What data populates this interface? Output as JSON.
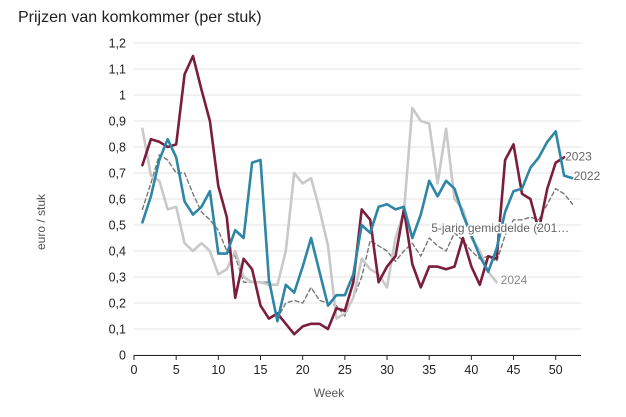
{
  "chart_data": {
    "type": "line",
    "title": "Prijzen van komkommer (per stuk)",
    "xlabel": "Week",
    "ylabel": "euro / stuk",
    "xlim": [
      0,
      53
    ],
    "ylim": [
      0,
      1.2
    ],
    "x_ticks": [
      "0",
      "5",
      "10",
      "15",
      "20",
      "25",
      "30",
      "35",
      "40",
      "45",
      "50"
    ],
    "y_ticks": [
      "0",
      "0,1",
      "0,2",
      "0,3",
      "0,4",
      "0,5",
      "0,6",
      "0,7",
      "0,8",
      "0,9",
      "1",
      "1,1",
      "1,2"
    ],
    "grid": "horizontal",
    "legend": "direct labels at line ends",
    "series": [
      {
        "name": "5-jarig gemiddelde (201…",
        "color": "#777777",
        "dashed": true,
        "x": [
          1,
          2,
          3,
          4,
          5,
          6,
          7,
          8,
          9,
          10,
          11,
          12,
          13,
          14,
          15,
          16,
          17,
          18,
          19,
          20,
          21,
          22,
          23,
          24,
          25,
          26,
          27,
          28,
          29,
          30,
          31,
          32,
          33,
          34,
          35,
          36,
          37,
          38,
          39,
          40,
          41,
          42,
          43,
          44,
          45,
          46,
          47,
          48,
          49,
          50,
          51,
          52
        ],
        "values": [
          0.56,
          0.66,
          0.77,
          0.75,
          0.7,
          0.7,
          0.62,
          0.55,
          0.52,
          0.48,
          0.4,
          0.38,
          0.28,
          0.28,
          0.28,
          0.28,
          0.14,
          0.2,
          0.21,
          0.2,
          0.26,
          0.21,
          0.2,
          0.19,
          0.15,
          0.22,
          0.3,
          0.44,
          0.42,
          0.4,
          0.36,
          0.4,
          0.43,
          0.38,
          0.45,
          0.42,
          0.4,
          0.47,
          0.44,
          0.4,
          0.37,
          0.38,
          0.36,
          0.46,
          0.52,
          0.52,
          0.53,
          0.52,
          0.58,
          0.64,
          0.62,
          0.58
        ]
      },
      {
        "name": "2024",
        "color": "#c9c9c9",
        "dashed": false,
        "x": [
          1,
          2,
          3,
          4,
          5,
          6,
          7,
          8,
          9,
          10,
          11,
          12,
          13,
          14,
          15,
          16,
          17,
          18,
          19,
          20,
          21,
          22,
          23,
          24,
          25,
          26,
          27,
          28,
          29,
          30,
          31,
          32,
          33,
          34,
          35,
          36,
          37,
          38,
          39,
          40,
          41,
          42,
          43
        ],
        "values": [
          0.87,
          0.69,
          0.67,
          0.56,
          0.57,
          0.43,
          0.4,
          0.43,
          0.4,
          0.31,
          0.33,
          0.4,
          0.3,
          0.28,
          0.28,
          0.27,
          0.27,
          0.4,
          0.7,
          0.66,
          0.68,
          0.56,
          0.42,
          0.14,
          0.16,
          0.22,
          0.37,
          0.33,
          0.31,
          0.26,
          0.45,
          0.55,
          0.95,
          0.9,
          0.89,
          0.66,
          0.87,
          0.6,
          0.56,
          0.45,
          0.4,
          0.32,
          0.28
        ]
      },
      {
        "name": "2023",
        "color": "#7b1e3c",
        "dashed": false,
        "x": [
          1,
          2,
          3,
          4,
          5,
          6,
          7,
          8,
          9,
          10,
          11,
          12,
          13,
          14,
          15,
          16,
          17,
          18,
          19,
          20,
          21,
          22,
          23,
          24,
          25,
          26,
          27,
          28,
          29,
          30,
          31,
          32,
          33,
          34,
          35,
          36,
          37,
          38,
          39,
          40,
          41,
          42,
          43,
          44,
          45,
          46,
          47,
          48,
          49,
          50,
          51
        ],
        "values": [
          0.73,
          0.83,
          0.82,
          0.8,
          0.81,
          1.08,
          1.15,
          1.02,
          0.9,
          0.65,
          0.53,
          0.22,
          0.37,
          0.33,
          0.19,
          0.14,
          0.16,
          0.12,
          0.08,
          0.11,
          0.12,
          0.12,
          0.1,
          0.18,
          0.17,
          0.28,
          0.56,
          0.52,
          0.28,
          0.34,
          0.38,
          0.56,
          0.35,
          0.26,
          0.34,
          0.34,
          0.33,
          0.34,
          0.45,
          0.34,
          0.27,
          0.38,
          0.37,
          0.75,
          0.81,
          0.62,
          0.6,
          0.48,
          0.64,
          0.74,
          0.76
        ]
      },
      {
        "name": "2022",
        "color": "#2e86a6",
        "dashed": false,
        "x": [
          1,
          2,
          3,
          4,
          5,
          6,
          7,
          8,
          9,
          10,
          11,
          12,
          13,
          14,
          15,
          16,
          17,
          18,
          19,
          20,
          21,
          22,
          23,
          24,
          25,
          26,
          27,
          28,
          29,
          30,
          31,
          32,
          33,
          34,
          35,
          36,
          37,
          38,
          39,
          40,
          41,
          42,
          43,
          44,
          45,
          46,
          47,
          48,
          49,
          50,
          51,
          52
        ],
        "values": [
          0.51,
          0.61,
          0.75,
          0.83,
          0.76,
          0.59,
          0.54,
          0.57,
          0.63,
          0.39,
          0.39,
          0.48,
          0.45,
          0.74,
          0.75,
          0.29,
          0.13,
          0.27,
          0.24,
          0.34,
          0.45,
          0.32,
          0.19,
          0.23,
          0.23,
          0.31,
          0.5,
          0.47,
          0.57,
          0.58,
          0.56,
          0.57,
          0.45,
          0.54,
          0.67,
          0.61,
          0.67,
          0.64,
          0.54,
          0.46,
          0.38,
          0.32,
          0.41,
          0.55,
          0.63,
          0.64,
          0.72,
          0.76,
          0.82,
          0.86,
          0.69,
          0.68
        ]
      }
    ]
  }
}
